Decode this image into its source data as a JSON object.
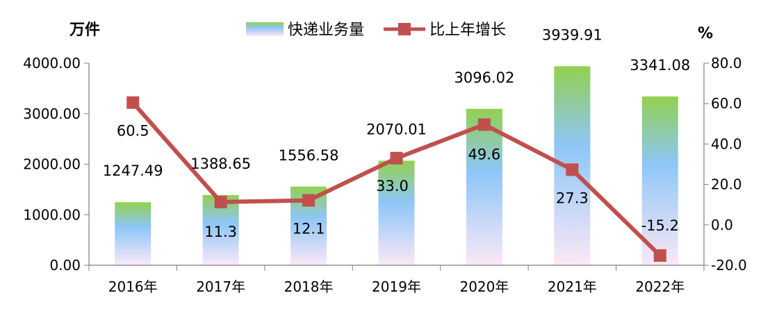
{
  "chart_data": {
    "type": "bar+line",
    "categories": [
      "2016年",
      "2017年",
      "2018年",
      "2019年",
      "2020年",
      "2021年",
      "2022年"
    ],
    "series": [
      {
        "name": "快递业务量",
        "type": "bar",
        "axis": "left",
        "values": [
          1247.49,
          1388.65,
          1556.58,
          2070.01,
          3096.02,
          3939.91,
          3341.08
        ],
        "labels": [
          "1247.49",
          "1388.65",
          "1556.58",
          "2070.01",
          "3096.02",
          "3939.91",
          "3341.08"
        ]
      },
      {
        "name": "比上年增长",
        "type": "line",
        "axis": "right",
        "values": [
          60.5,
          11.3,
          12.1,
          33.0,
          49.6,
          27.3,
          -15.2
        ],
        "labels": [
          "60.5",
          "11.3",
          "12.1",
          "33.0",
          "49.6",
          "27.3",
          "-15.2"
        ]
      }
    ],
    "y_left": {
      "unit": "万件",
      "range": [
        0,
        4000
      ],
      "ticks": [
        0,
        1000,
        2000,
        3000,
        4000
      ],
      "tick_labels": [
        "0.00",
        "1000.00",
        "2000.00",
        "3000.00",
        "4000.00"
      ]
    },
    "y_right": {
      "unit": "%",
      "range": [
        -20,
        80
      ],
      "ticks": [
        -20,
        0,
        20,
        40,
        60,
        80
      ],
      "tick_labels": [
        "-20.0",
        "0.0",
        "20.0",
        "40.0",
        "60.0",
        "80.0"
      ]
    },
    "legend_position": "top-center",
    "grid": false
  },
  "colors": {
    "bar_top": "#92d050",
    "bar_mid": "#8ec6f8",
    "bar_bottom": "#fbe8f6",
    "line": "#c0504d",
    "axis": "#7f7f7f"
  }
}
